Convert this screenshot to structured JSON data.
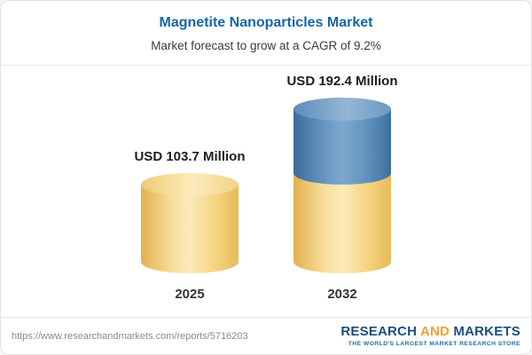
{
  "header": {
    "title": "Magnetite Nanoparticles Market",
    "subtitle": "Market forecast to grow at a CAGR of 9.2%"
  },
  "chart_data": {
    "type": "bar",
    "style": "3d-cylinder",
    "categories": [
      "2025",
      "2032"
    ],
    "values": [
      103.7,
      192.4
    ],
    "value_labels": [
      "USD 103.7 Million",
      "USD 192.4 Million"
    ],
    "unit": "USD Million",
    "title": "Magnetite Nanoparticles Market",
    "subtitle": "Market forecast to grow at a CAGR of 9.2%",
    "cagr_percent": 9.2,
    "grid": false,
    "legend": "none",
    "colors": {
      "base_segment": "#F3D27D",
      "growth_segment": "#5E8FBA",
      "title": "#1565A8"
    },
    "notes": "2032 cylinder is stacked: yellow base equals 2025 value, blue top is incremental growth"
  },
  "footer": {
    "url": "https://www.researchandmarkets.com/reports/5716203",
    "logo": {
      "word1": "RESEARCH",
      "word2": "AND",
      "word3": "MARKETS",
      "tagline": "THE WORLD'S LARGEST MARKET RESEARCH STORE"
    }
  }
}
